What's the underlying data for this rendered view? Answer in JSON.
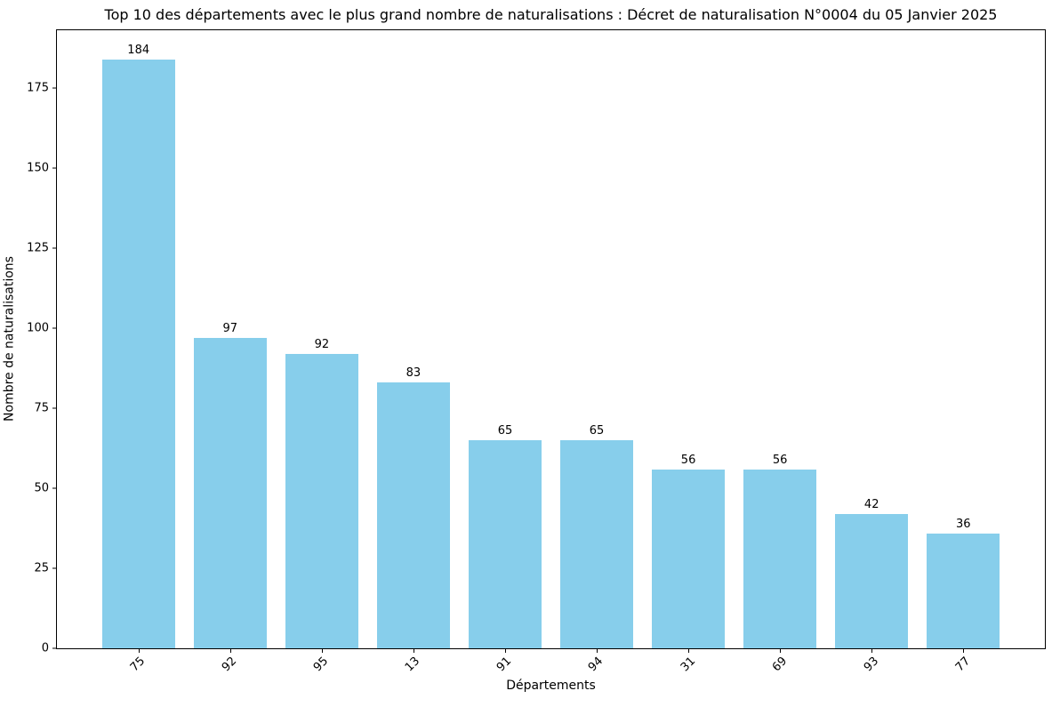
{
  "chart_data": {
    "type": "bar",
    "title": "Top 10 des départements avec le plus grand nombre de naturalisations : Décret de naturalisation N°0004 du 05 Janvier 2025",
    "categories": [
      "75",
      "92",
      "95",
      "13",
      "91",
      "94",
      "31",
      "69",
      "93",
      "77"
    ],
    "values": [
      184,
      97,
      92,
      83,
      65,
      65,
      56,
      56,
      42,
      36
    ],
    "xlabel": "Départements",
    "ylabel": "Nombre de naturalisations",
    "ylim": [
      0,
      193.2
    ],
    "yticks": [
      0,
      25,
      50,
      75,
      100,
      125,
      150,
      175
    ],
    "bar_color": "#87CEEB",
    "bar_width_fraction": 0.8,
    "x_margin_fraction": 0.05,
    "grid": false,
    "legend": "none",
    "value_labels_shown": true,
    "axis_color": "#000000",
    "text_color": "#000000",
    "background_color": "#ffffff"
  }
}
